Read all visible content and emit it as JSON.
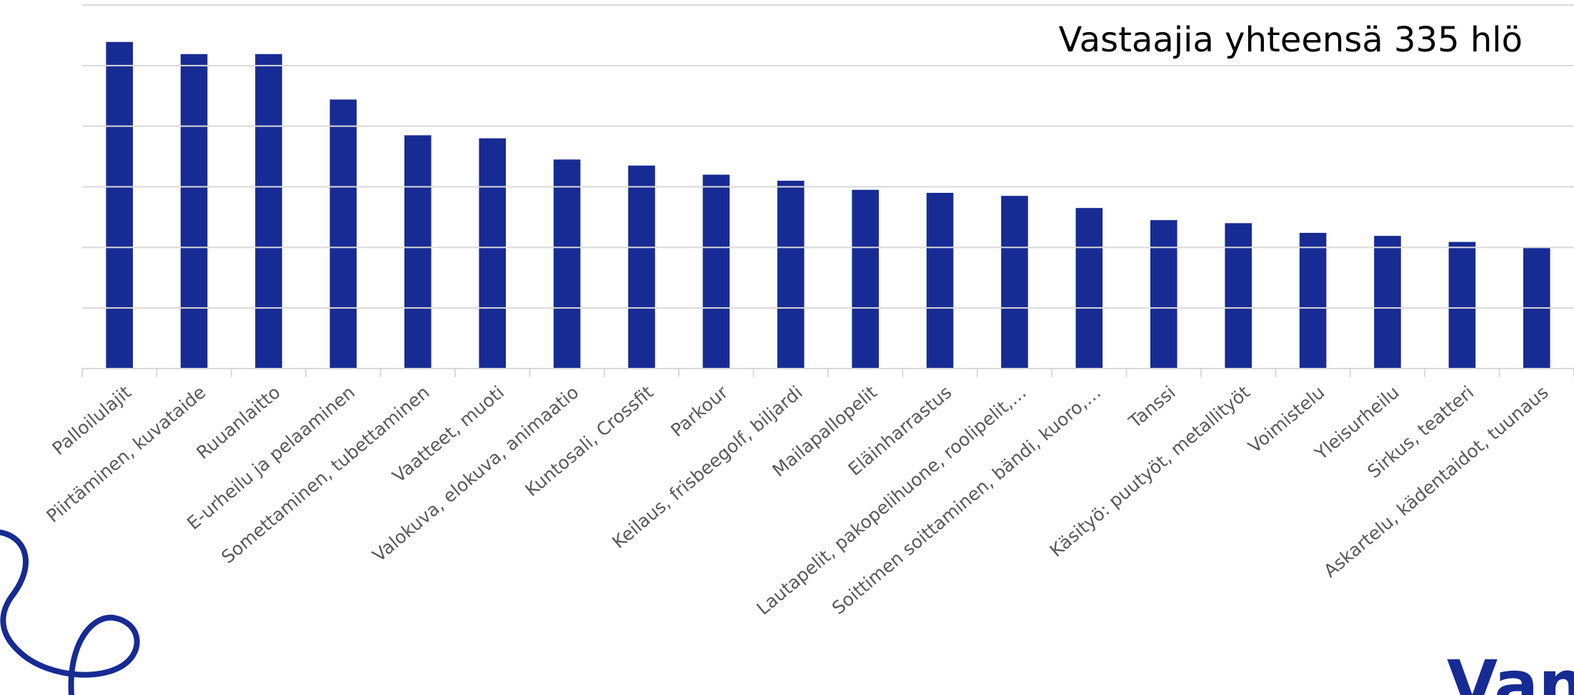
{
  "chart_data": {
    "type": "bar",
    "annotation": "Vastaajia yhteensä 335 hlö",
    "logo": "Vantaa",
    "categories": [
      "Palloilulajit",
      "Piirtäminen, kuvataide",
      "Ruuanlaitto",
      "E-urheilu ja pelaaminen",
      "Somettaminen, tubettaminen",
      "Vaatteet, muoti",
      "Valokuva, elokuva, animaatio",
      "Kuntosali, Crossfit",
      "Parkour",
      "Keilaus, frisbeegolf, biljardi",
      "Mailapallopelit",
      "Eläinharrastus",
      "Lautapelit, pakopelihuone, roolipelit,…",
      "Soittimen soittaminen, bändi, kuoro,…",
      "Tanssi",
      "Käsityö: puutyöt, metallityöt",
      "Voimistelu",
      "Yleisurheilu",
      "Sirkus, teatteri",
      "Askartelu, kädentaidot, tuunaus"
    ],
    "values": [
      5.39,
      5.19,
      5.19,
      4.44,
      3.85,
      3.8,
      3.45,
      3.35,
      3.2,
      3.1,
      2.95,
      2.9,
      2.85,
      2.65,
      2.45,
      2.4,
      2.24,
      2.19,
      2.09,
      1.99
    ],
    "color": "#172b94",
    "ylim": [
      0,
      6
    ],
    "yticks": [
      0,
      1,
      2,
      3,
      4,
      5,
      6
    ],
    "grid": true,
    "show_tick_labels": false
  }
}
